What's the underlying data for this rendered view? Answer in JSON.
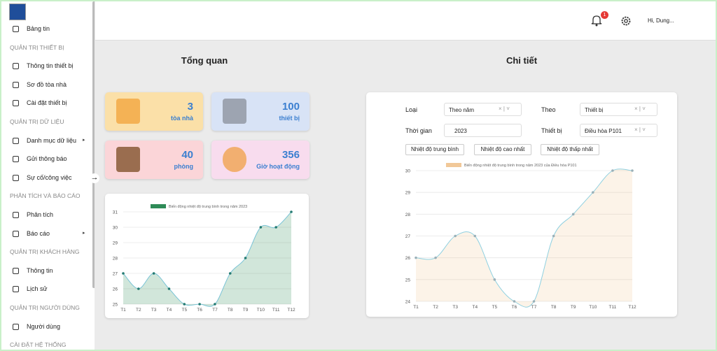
{
  "sidebar": {
    "groups": [
      {
        "items": [
          "Bảng tin"
        ]
      },
      {
        "title": "QUẢN TRỊ THIẾT BỊ",
        "items": [
          "Thông tin thiết bị",
          "Sơ đồ tòa nhà",
          "Cài đặt thiết bị"
        ]
      },
      {
        "title": "QUẢN TRỊ DỮ LIỆU",
        "items": [
          "Danh mục dữ liệu",
          "Gửi thông báo",
          "Sự cố/công việc"
        ]
      },
      {
        "title": "PHÂN TÍCH VÀ BÁO CÁO",
        "items": [
          "Phân tích",
          "Báo cáo"
        ]
      },
      {
        "title": "QUẢN TRỊ KHÁCH HÀNG",
        "items": [
          "Thông tin",
          "Lịch sử"
        ]
      },
      {
        "title": "QUẢN TRỊ NGƯỜI DÙNG",
        "items": [
          "Người dùng"
        ]
      },
      {
        "title": "CÀI ĐẶT HỆ THỐNG",
        "items": []
      }
    ]
  },
  "header": {
    "notification_count": 1,
    "greeting": "Hi, Dung..."
  },
  "overview": {
    "title": "Tổng quan",
    "stats": [
      {
        "value": 3,
        "label": "tòa nhà",
        "color": "#fbe0a8"
      },
      {
        "value": 100,
        "label": "thiết bị",
        "color": "#d8e3f6"
      },
      {
        "value": 40,
        "label": "phòng",
        "color": "#fbd5d8"
      },
      {
        "value": 356,
        "label": "Giờ hoạt động",
        "color": "#f8dcee"
      }
    ]
  },
  "detail": {
    "title": "Chi tiết",
    "filters": [
      {
        "label": "Loại",
        "value": "Theo năm"
      },
      {
        "label": "Theo",
        "value": "Thiết bị"
      },
      {
        "label": "Thời gian",
        "value": "2023"
      },
      {
        "label": "Thiết bị",
        "value": "Điều hòa P101"
      }
    ],
    "buttons": [
      "Nhiệt độ trung bình",
      "Nhiệt độ cao nhất",
      "Nhiệt độ thấp nhất"
    ]
  },
  "chart_data": [
    {
      "type": "line",
      "categories": [
        "T1",
        "T2",
        "T3",
        "T4",
        "T5",
        "T6",
        "T7",
        "T8",
        "T9",
        "T10",
        "T11",
        "T12"
      ],
      "series": [
        {
          "name": "Biến động nhiệt độ trung bình trong năm 2023",
          "color": "#2e8b57",
          "line_color": "#79c3d6",
          "point_color": "#237a72",
          "values": [
            27,
            26,
            27,
            26,
            25,
            25,
            25,
            27,
            28,
            30,
            30,
            31
          ]
        }
      ],
      "ylim": [
        25,
        31
      ],
      "yticks": [
        25,
        26,
        27,
        28,
        29,
        30,
        31
      ],
      "grid": true,
      "fill": true
    },
    {
      "type": "line",
      "categories": [
        "T1",
        "T2",
        "T3",
        "T4",
        "T5",
        "T6",
        "T7",
        "T8",
        "T9",
        "T10",
        "T11",
        "T12"
      ],
      "series": [
        {
          "name": "Biến động nhiệt độ trung bình trong năm 2023 của Điều hòa P101",
          "color": "#f1c898",
          "line_color": "#8fd0e0",
          "point_color": "#9ab0b8",
          "values": [
            26,
            26,
            27,
            27,
            25,
            24,
            24,
            27,
            28,
            29,
            30,
            30
          ]
        }
      ],
      "ylim": [
        24,
        30
      ],
      "yticks": [
        24,
        25,
        26,
        27,
        28,
        29,
        30
      ],
      "grid": true,
      "fill": true
    }
  ]
}
